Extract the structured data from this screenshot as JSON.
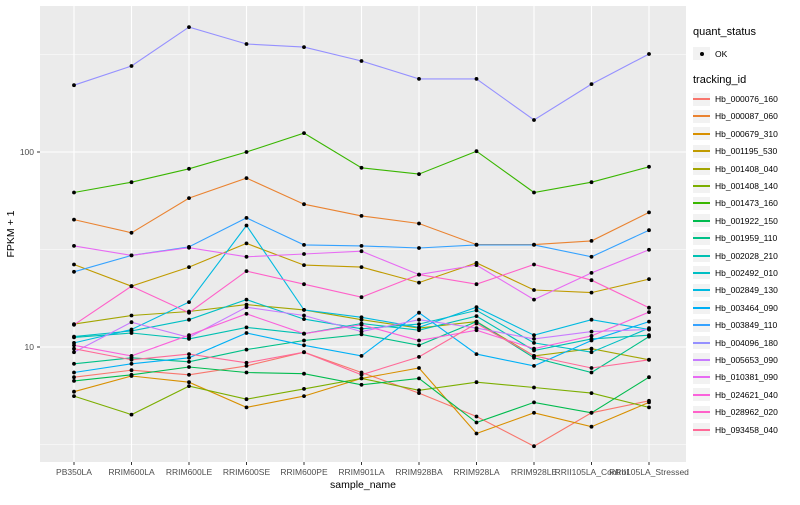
{
  "colors": {
    "panel_bg": "#EBEBEB",
    "grid": "#FFFFFF",
    "point": "#000000",
    "axis_text": "#4D4D4D",
    "axis_title": "#000000",
    "legend_key_bg": "#F2F2F2"
  },
  "chart_data": {
    "type": "line",
    "xlabel": "sample_name",
    "ylabel": "FPKM + 1",
    "y_scale": "log10",
    "y_ticks": [
      10,
      100
    ],
    "y_tick_labels": [
      "10",
      "100"
    ],
    "y_minor_ticks": [
      3.162,
      31.62,
      316.2
    ],
    "ylim": [
      2.57,
      561
    ],
    "grid": true,
    "legend_position": "right",
    "legend": {
      "quant_status_title": "quant_status",
      "quant_status_items": [
        {
          "label": "OK",
          "symbol": "point"
        }
      ],
      "tracking_title": "tracking_id"
    },
    "categories": [
      "PB350LA",
      "RRIM600LA",
      "RRIM600LE",
      "RRIM600SE",
      "RRIM600PE",
      "RRIM901LA",
      "RRIM928BA",
      "RRIM928LA",
      "RRIM928LE",
      "RRII105LA_Control",
      "RRII105LA_Stressed"
    ],
    "series": [
      {
        "name": "Hb_000076_160",
        "color": "#F8766D",
        "values": [
          7.0,
          7.6,
          7.2,
          8.0,
          9.4,
          7.4,
          5.8,
          4.4,
          3.1,
          4.6,
          5.3
        ]
      },
      {
        "name": "Hb_000087_060",
        "color": "#EA8331",
        "values": [
          45,
          38.5,
          58,
          73.5,
          54,
          47,
          43,
          33.5,
          33.5,
          35,
          49
        ]
      },
      {
        "name": "Hb_000679_310",
        "color": "#D89000",
        "values": [
          5.9,
          7.1,
          6.6,
          4.9,
          5.6,
          6.9,
          7.8,
          3.6,
          4.6,
          3.9,
          5.2
        ]
      },
      {
        "name": "Hb_001195_530",
        "color": "#C09B00",
        "values": [
          26.5,
          20.5,
          25.7,
          34,
          26.3,
          25.7,
          21.4,
          27,
          19.6,
          19,
          22.3
        ]
      },
      {
        "name": "Hb_001408_040",
        "color": "#A3A500",
        "values": [
          13.1,
          14.5,
          15.2,
          16.5,
          15.5,
          13.8,
          12.5,
          13.5,
          9.0,
          9.8,
          8.6
        ]
      },
      {
        "name": "Hb_001408_140",
        "color": "#7CAE00",
        "values": [
          5.6,
          4.5,
          6.3,
          5.4,
          6.1,
          6.9,
          6.0,
          6.6,
          6.2,
          5.8,
          4.9
        ]
      },
      {
        "name": "Hb_001473_160",
        "color": "#39B600",
        "values": [
          62,
          70,
          82,
          100,
          125,
          83,
          77,
          101,
          62,
          70,
          84
        ]
      },
      {
        "name": "Hb_001922_150",
        "color": "#00BB4E",
        "values": [
          6.7,
          7.2,
          7.9,
          7.4,
          7.3,
          6.4,
          6.9,
          4.1,
          5.2,
          4.6,
          7.0
        ]
      },
      {
        "name": "Hb_001959_110",
        "color": "#00C087",
        "values": [
          8.2,
          8.8,
          8.4,
          9.7,
          10.8,
          11.6,
          10.2,
          13.5,
          8.8,
          7.4,
          11.3
        ]
      },
      {
        "name": "Hb_002028_210",
        "color": "#00C0B2",
        "values": [
          11.2,
          11.8,
          11.0,
          12.6,
          11.7,
          13.2,
          12.2,
          14.4,
          9.6,
          11.0,
          11.5
        ]
      },
      {
        "name": "Hb_002492_010",
        "color": "#00BFC4",
        "values": [
          11.3,
          12.1,
          13.8,
          17.5,
          13.9,
          12.4,
          13.1,
          15.4,
          10.5,
          9.4,
          12.5
        ]
      },
      {
        "name": "Hb_002849_130",
        "color": "#00BAE0",
        "values": [
          10.5,
          12.3,
          17.0,
          42,
          15.5,
          14.2,
          12.6,
          16.0,
          11.5,
          13.8,
          12.3
        ]
      },
      {
        "name": "Hb_003464_090",
        "color": "#00B0F6",
        "values": [
          7.4,
          8.2,
          8.8,
          11.8,
          10.2,
          9.0,
          15.0,
          9.2,
          8.0,
          10.8,
          13.5
        ]
      },
      {
        "name": "Hb_003849_110",
        "color": "#35A2FF",
        "values": [
          24.3,
          29.5,
          32.6,
          45.9,
          33.4,
          33,
          32.2,
          33.4,
          33.4,
          29,
          39.7
        ]
      },
      {
        "name": "Hb_004096_180",
        "color": "#9590FF",
        "values": [
          220,
          276,
          437,
          358,
          345,
          293,
          237,
          237,
          146,
          223,
          318
        ]
      },
      {
        "name": "Hb_005653_090",
        "color": "#C77CFF",
        "values": [
          9.4,
          13.4,
          11.2,
          16.0,
          14.5,
          12.0,
          13.8,
          12.5,
          11.0,
          12.0,
          12.3
        ]
      },
      {
        "name": "Hb_010381_090",
        "color": "#E76BF3",
        "values": [
          33,
          29.5,
          32.3,
          29,
          30,
          31,
          23.5,
          26.3,
          17.5,
          24,
          31.5
        ]
      },
      {
        "name": "Hb_024621_040",
        "color": "#FA62DB",
        "values": [
          10.2,
          9.0,
          11.5,
          14.8,
          11.7,
          13.0,
          10.8,
          12.2,
          9.8,
          11.4,
          15.1
        ]
      },
      {
        "name": "Hb_028962_020",
        "color": "#FF61C9",
        "values": [
          13.0,
          20.5,
          15.0,
          24.5,
          21.0,
          18.0,
          23.5,
          21.0,
          26.5,
          22.0,
          15.9
        ]
      },
      {
        "name": "Hb_093458_040",
        "color": "#FF6A98",
        "values": [
          9.8,
          8.6,
          9.2,
          8.3,
          9.4,
          7.2,
          8.9,
          13.2,
          9.0,
          7.8,
          8.6
        ]
      }
    ]
  }
}
